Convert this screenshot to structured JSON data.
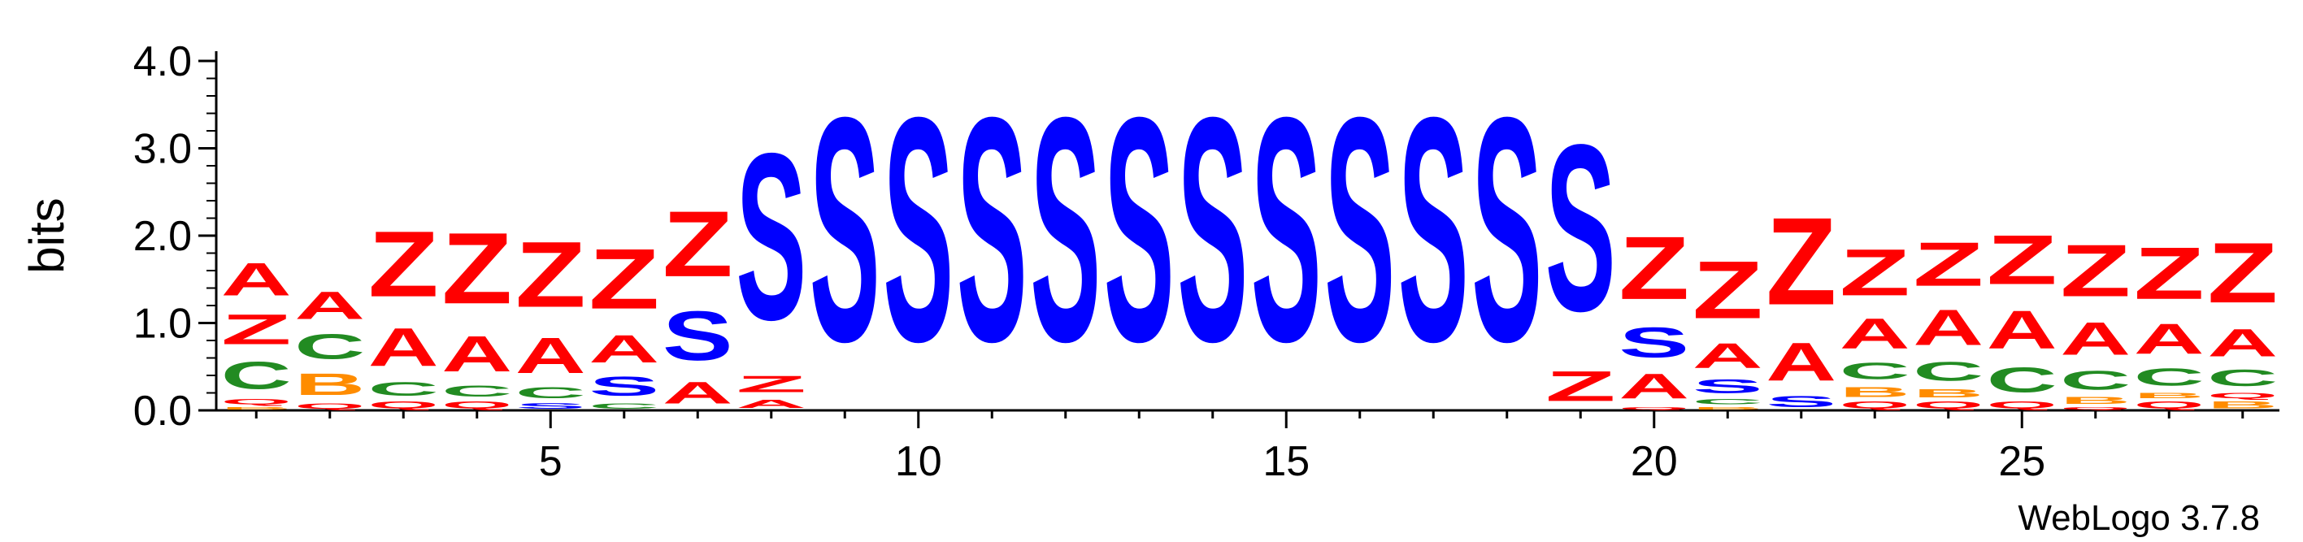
{
  "chart_data": {
    "type": "sequence-logo",
    "ylabel": "bits",
    "ylim": [
      0,
      4.0
    ],
    "yticks": [
      "0.0",
      "1.0",
      "2.0",
      "3.0",
      "4.0"
    ],
    "xticks": [
      5,
      10,
      15,
      20,
      25
    ],
    "positions": 28,
    "footer": "WebLogo 3.7.8",
    "colors": {
      "A": "#ff0000",
      "Z": "#ff0000",
      "S": "#0000ff",
      "C": "#228b22",
      "B": "#ff8c00",
      "Q": "#ff0000"
    },
    "columns": [
      {
        "pos": 1,
        "stack": [
          {
            "l": "B",
            "h": 0.05
          },
          {
            "l": "Q",
            "h": 0.1
          },
          {
            "l": "C",
            "h": 0.5
          },
          {
            "l": "Z",
            "h": 0.55
          },
          {
            "l": "A",
            "h": 0.6
          }
        ]
      },
      {
        "pos": 2,
        "stack": [
          {
            "l": "Q",
            "h": 0.1
          },
          {
            "l": "B",
            "h": 0.4
          },
          {
            "l": "C",
            "h": 0.45
          },
          {
            "l": "A",
            "h": 0.5
          }
        ]
      },
      {
        "pos": 3,
        "stack": [
          {
            "l": "Q",
            "h": 0.12
          },
          {
            "l": "C",
            "h": 0.25
          },
          {
            "l": "A",
            "h": 0.7
          },
          {
            "l": "Z",
            "h": 1.2
          }
        ]
      },
      {
        "pos": 4,
        "stack": [
          {
            "l": "Q",
            "h": 0.12
          },
          {
            "l": "C",
            "h": 0.2
          },
          {
            "l": "A",
            "h": 0.65
          },
          {
            "l": "Z",
            "h": 1.3
          }
        ]
      },
      {
        "pos": 5,
        "stack": [
          {
            "l": "S",
            "h": 0.1
          },
          {
            "l": "C",
            "h": 0.2
          },
          {
            "l": "A",
            "h": 0.65
          },
          {
            "l": "Z",
            "h": 1.2
          }
        ]
      },
      {
        "pos": 6,
        "stack": [
          {
            "l": "C",
            "h": 0.1
          },
          {
            "l": "S",
            "h": 0.35
          },
          {
            "l": "A",
            "h": 0.5
          },
          {
            "l": "Z",
            "h": 1.1
          }
        ]
      },
      {
        "pos": 7,
        "stack": [
          {
            "l": "A",
            "h": 0.4
          },
          {
            "l": "S",
            "h": 0.9
          },
          {
            "l": "Z",
            "h": 1.2
          }
        ]
      },
      {
        "pos": 8,
        "stack": [
          {
            "l": "A",
            "h": 0.15
          },
          {
            "l": "Z",
            "h": 0.3
          },
          {
            "l": "S",
            "h": 3.05
          }
        ]
      },
      {
        "pos": 9,
        "stack": [
          {
            "l": "S",
            "h": 4.1
          }
        ]
      },
      {
        "pos": 10,
        "stack": [
          {
            "l": "S",
            "h": 4.1
          }
        ]
      },
      {
        "pos": 11,
        "stack": [
          {
            "l": "S",
            "h": 4.1
          }
        ]
      },
      {
        "pos": 12,
        "stack": [
          {
            "l": "S",
            "h": 4.1
          }
        ]
      },
      {
        "pos": 13,
        "stack": [
          {
            "l": "S",
            "h": 4.1
          }
        ]
      },
      {
        "pos": 14,
        "stack": [
          {
            "l": "S",
            "h": 4.1
          }
        ]
      },
      {
        "pos": 15,
        "stack": [
          {
            "l": "S",
            "h": 4.1
          }
        ]
      },
      {
        "pos": 16,
        "stack": [
          {
            "l": "S",
            "h": 4.1
          }
        ]
      },
      {
        "pos": 17,
        "stack": [
          {
            "l": "S",
            "h": 4.1
          }
        ]
      },
      {
        "pos": 18,
        "stack": [
          {
            "l": "S",
            "h": 4.1
          }
        ]
      },
      {
        "pos": 19,
        "stack": [
          {
            "l": "Z",
            "h": 0.55
          },
          {
            "l": "S",
            "h": 3.05
          }
        ]
      },
      {
        "pos": 20,
        "stack": [
          {
            "l": "Q",
            "h": 0.05
          },
          {
            "l": "A",
            "h": 0.45
          },
          {
            "l": "S",
            "h": 0.55
          },
          {
            "l": "Z",
            "h": 1.15
          }
        ]
      },
      {
        "pos": 21,
        "stack": [
          {
            "l": "B",
            "h": 0.05
          },
          {
            "l": "C",
            "h": 0.1
          },
          {
            "l": "S",
            "h": 0.25
          },
          {
            "l": "A",
            "h": 0.45
          },
          {
            "l": "Z",
            "h": 1.05
          }
        ]
      },
      {
        "pos": 22,
        "stack": [
          {
            "l": "S",
            "h": 0.2
          },
          {
            "l": "A",
            "h": 0.7
          },
          {
            "l": "Z",
            "h": 1.6
          }
        ]
      },
      {
        "pos": 23,
        "stack": [
          {
            "l": "Q",
            "h": 0.12
          },
          {
            "l": "B",
            "h": 0.18
          },
          {
            "l": "C",
            "h": 0.3
          },
          {
            "l": "A",
            "h": 0.55
          },
          {
            "l": "Z",
            "h": 0.85
          }
        ]
      },
      {
        "pos": 24,
        "stack": [
          {
            "l": "Q",
            "h": 0.12
          },
          {
            "l": "B",
            "h": 0.15
          },
          {
            "l": "C",
            "h": 0.35
          },
          {
            "l": "A",
            "h": 0.65
          },
          {
            "l": "Z",
            "h": 0.8
          }
        ]
      },
      {
        "pos": 25,
        "stack": [
          {
            "l": "Q",
            "h": 0.12
          },
          {
            "l": "C",
            "h": 0.45
          },
          {
            "l": "A",
            "h": 0.7
          },
          {
            "l": "Z",
            "h": 0.9
          }
        ]
      },
      {
        "pos": 26,
        "stack": [
          {
            "l": "Q",
            "h": 0.05
          },
          {
            "l": "B",
            "h": 0.12
          },
          {
            "l": "C",
            "h": 0.35
          },
          {
            "l": "A",
            "h": 0.6
          },
          {
            "l": "Z",
            "h": 0.95
          }
        ]
      },
      {
        "pos": 27,
        "stack": [
          {
            "l": "Q",
            "h": 0.12
          },
          {
            "l": "B",
            "h": 0.1
          },
          {
            "l": "C",
            "h": 0.32
          },
          {
            "l": "A",
            "h": 0.55
          },
          {
            "l": "Z",
            "h": 0.95
          }
        ]
      },
      {
        "pos": 28,
        "stack": [
          {
            "l": "B",
            "h": 0.12
          },
          {
            "l": "Q",
            "h": 0.1
          },
          {
            "l": "C",
            "h": 0.3
          },
          {
            "l": "A",
            "h": 0.5
          },
          {
            "l": "Z",
            "h": 1.1
          }
        ]
      }
    ]
  }
}
